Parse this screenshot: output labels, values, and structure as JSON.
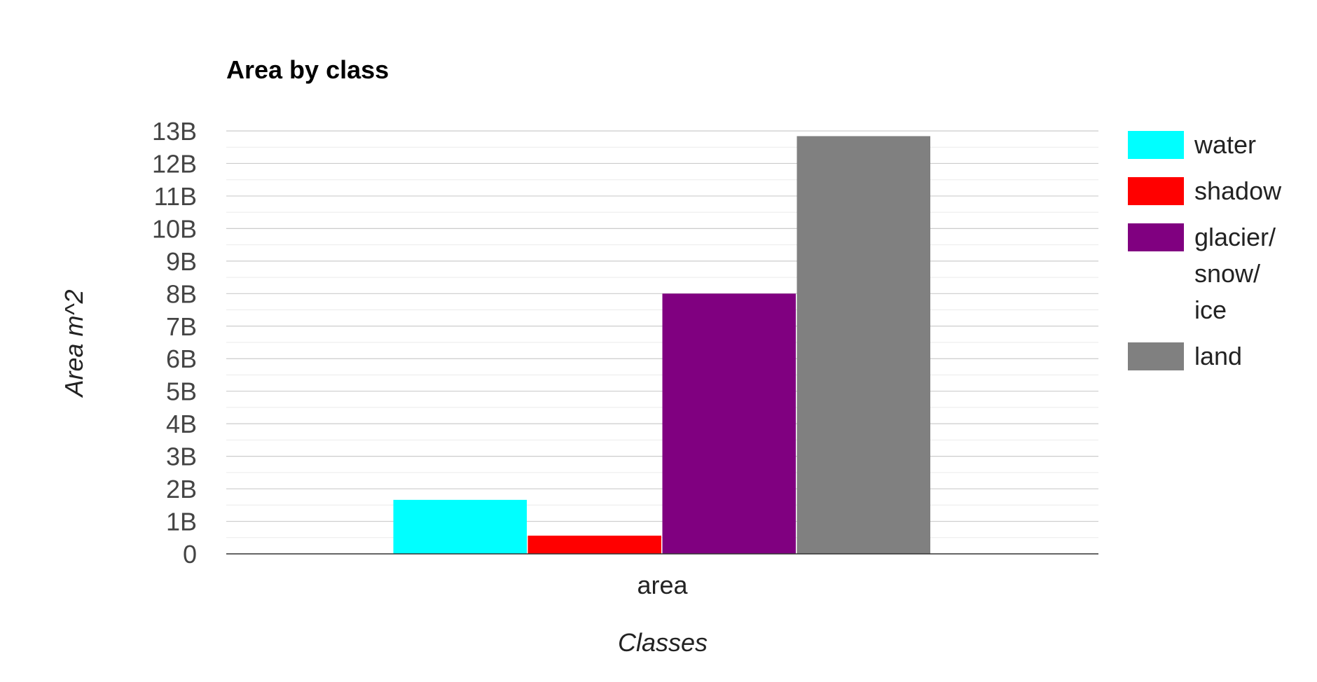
{
  "chart_data": {
    "type": "bar",
    "title": "Area by class",
    "xlabel": "Classes",
    "ylabel_prefix": "Area ",
    "ylabel_unit": "m^2",
    "categories": [
      "area"
    ],
    "series": [
      {
        "name": "water",
        "color": "#00ffff",
        "values": [
          1660000000
        ]
      },
      {
        "name": "shadow",
        "color": "#ff0000",
        "values": [
          560000000
        ]
      },
      {
        "name": "glacier/snow/ice",
        "color": "#800080",
        "values": [
          8000000000
        ]
      },
      {
        "name": "land",
        "color": "#808080",
        "values": [
          12840000000
        ]
      }
    ],
    "legend_lines": [
      [
        "water"
      ],
      [
        "shadow"
      ],
      [
        "glacier/",
        "snow/",
        "ice"
      ],
      [
        "land"
      ]
    ],
    "ylim": [
      0,
      13000000000
    ],
    "y_ticks": [
      {
        "value": 0,
        "label": "0"
      },
      {
        "value": 1000000000,
        "label": "1B"
      },
      {
        "value": 2000000000,
        "label": "2B"
      },
      {
        "value": 3000000000,
        "label": "3B"
      },
      {
        "value": 4000000000,
        "label": "4B"
      },
      {
        "value": 5000000000,
        "label": "5B"
      },
      {
        "value": 6000000000,
        "label": "6B"
      },
      {
        "value": 7000000000,
        "label": "7B"
      },
      {
        "value": 8000000000,
        "label": "8B"
      },
      {
        "value": 9000000000,
        "label": "9B"
      },
      {
        "value": 10000000000,
        "label": "10B"
      },
      {
        "value": 11000000000,
        "label": "11B"
      },
      {
        "value": 12000000000,
        "label": "12B"
      },
      {
        "value": 13000000000,
        "label": "13B"
      }
    ],
    "grid": true,
    "legend_position": "right"
  }
}
